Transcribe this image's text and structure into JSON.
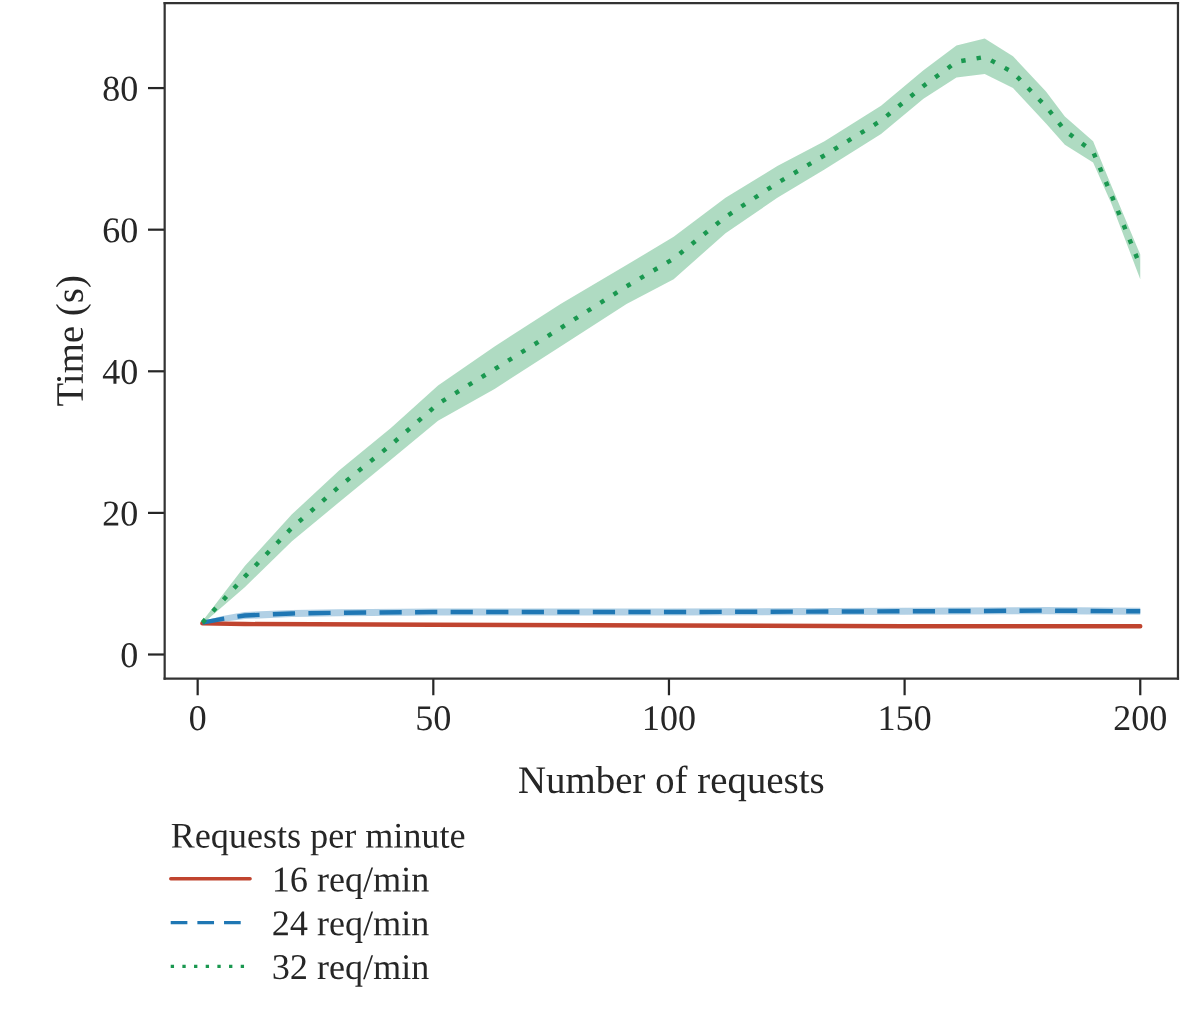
{
  "chart_data": {
    "type": "line",
    "xlabel": "Number of requests",
    "ylabel": "Time (s)",
    "legend_title": "Requests per minute",
    "legend": "bottom",
    "grid": false,
    "xlim": [
      -7,
      208
    ],
    "ylim": [
      -3.4,
      92
    ],
    "xticks": [
      0,
      50,
      100,
      150,
      200
    ],
    "yticks": [
      0,
      20,
      40,
      60,
      80
    ],
    "series": [
      {
        "name": "16 req/min",
        "color": "#c0442f",
        "line_style": "solid",
        "x": [
          1,
          10,
          50,
          100,
          150,
          200
        ],
        "values": [
          4.4,
          4.3,
          4.2,
          4.1,
          4.0,
          4.0
        ]
      },
      {
        "name": "24 req/min",
        "color": "#1f77b4",
        "line_style": "dashed",
        "x": [
          1,
          5,
          10,
          20,
          30,
          50,
          100,
          150,
          180,
          200
        ],
        "values": [
          4.5,
          5.0,
          5.5,
          5.8,
          5.9,
          6.0,
          6.0,
          6.1,
          6.2,
          6.1
        ],
        "lower": [
          4.3,
          4.6,
          5.0,
          5.3,
          5.4,
          5.5,
          5.5,
          5.6,
          5.7,
          5.6
        ],
        "upper": [
          4.7,
          5.4,
          6.0,
          6.3,
          6.4,
          6.5,
          6.5,
          6.6,
          6.7,
          6.6
        ]
      },
      {
        "name": "32 req/min",
        "color": "#1a9850",
        "line_style": "dotted",
        "x": [
          1,
          10,
          20,
          30,
          41,
          51,
          63,
          77,
          91,
          101,
          112,
          123,
          133,
          145,
          154,
          161,
          167,
          173,
          180,
          184,
          190,
          194,
          200
        ],
        "values": [
          4.5,
          11.0,
          17.9,
          23.7,
          29.6,
          35.4,
          40.3,
          46.1,
          52.0,
          55.9,
          61.8,
          66.6,
          70.5,
          75.4,
          80.3,
          83.7,
          84.4,
          82.2,
          77.4,
          74.0,
          71.0,
          64.7,
          54.9
        ],
        "lower": [
          4.3,
          9.5,
          16.0,
          21.5,
          27.5,
          33.0,
          37.5,
          43.5,
          49.5,
          53.0,
          59.5,
          64.5,
          68.5,
          73.5,
          78.5,
          81.5,
          82.0,
          80.0,
          75.0,
          72.0,
          69.5,
          63.5,
          53.0
        ],
        "upper": [
          4.7,
          12.5,
          19.8,
          26.0,
          32.0,
          38.0,
          43.5,
          49.5,
          55.0,
          59.0,
          64.5,
          69.0,
          72.5,
          77.5,
          82.5,
          86.0,
          87.0,
          84.5,
          79.5,
          76.0,
          72.5,
          66.0,
          56.5
        ]
      }
    ]
  }
}
